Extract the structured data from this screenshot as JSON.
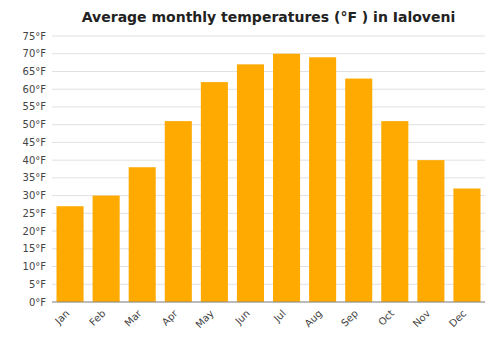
{
  "chart_data": {
    "type": "bar",
    "title": "Average monthly temperatures (°F ) in Ialoveni",
    "categories": [
      "Jan",
      "Feb",
      "Mar",
      "Apr",
      "May",
      "Jun",
      "Jul",
      "Aug",
      "Sep",
      "Oct",
      "Nov",
      "Dec"
    ],
    "values": [
      27,
      30,
      38,
      51,
      62,
      67,
      70,
      69,
      63,
      51,
      40,
      32
    ],
    "color": "#FFAA00",
    "ylim": [
      0,
      75
    ],
    "yticks": [
      {
        "value": 0,
        "label": "0°F"
      },
      {
        "value": 5,
        "label": "5°F"
      },
      {
        "value": 10,
        "label": "10°F"
      },
      {
        "value": 15,
        "label": "15°F"
      },
      {
        "value": 20,
        "label": "20°F"
      },
      {
        "value": 25,
        "label": "25°F"
      },
      {
        "value": 30,
        "label": "30°F"
      },
      {
        "value": 35,
        "label": "35°F"
      },
      {
        "value": 40,
        "label": "40°F"
      },
      {
        "value": 45,
        "label": "45°F"
      },
      {
        "value": 50,
        "label": "50°F"
      },
      {
        "value": 55,
        "label": "55°F"
      },
      {
        "value": 60,
        "label": "60°F"
      },
      {
        "value": 65,
        "label": "65°F"
      },
      {
        "value": 70,
        "label": "70°F"
      },
      {
        "value": 75,
        "label": "75°F"
      }
    ],
    "grid": true
  }
}
